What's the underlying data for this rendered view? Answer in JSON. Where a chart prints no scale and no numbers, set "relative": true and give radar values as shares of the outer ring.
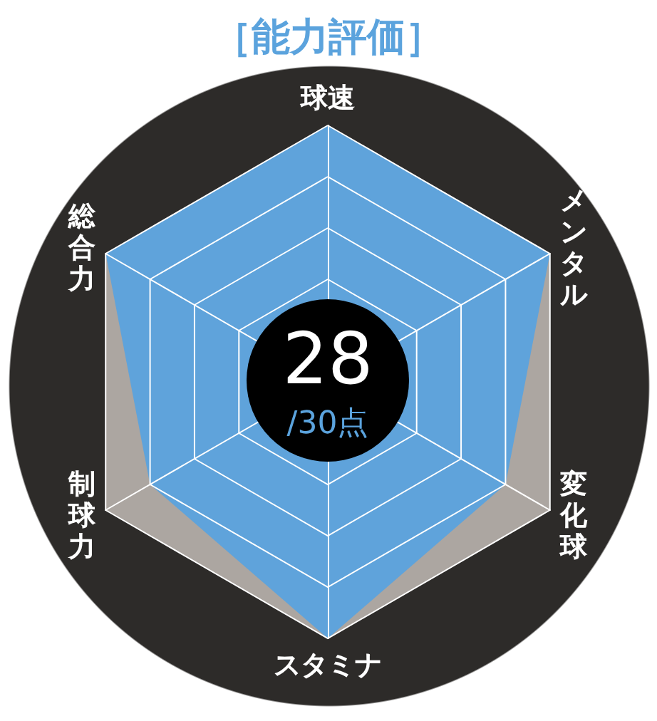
{
  "chart_data": {
    "type": "radar",
    "title": "［能力評価］",
    "relative": true,
    "categories": [
      "球速",
      "メンタル",
      "変化球",
      "スタミナ",
      "制球力",
      "総合力"
    ],
    "series": [
      {
        "color": "#5fa3db",
        "values": [
          1,
          1,
          0.8,
          1,
          0.8,
          1
        ]
      }
    ],
    "annotations": [
      "28",
      "/30点"
    ],
    "marker": "none"
  }
}
